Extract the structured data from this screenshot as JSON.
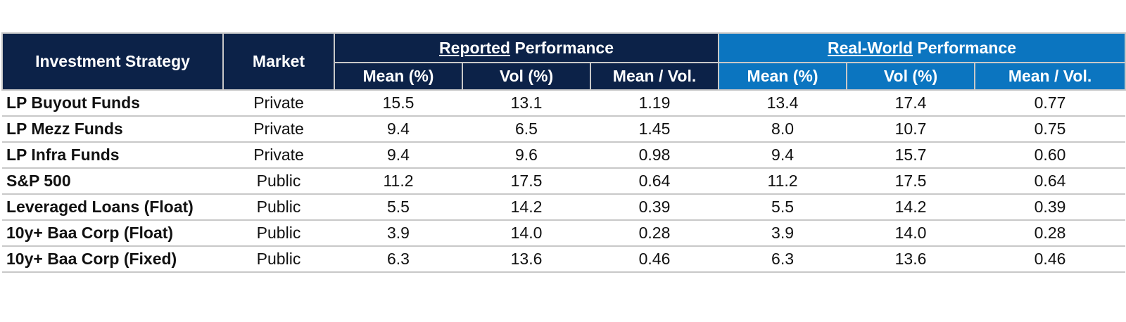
{
  "chart_data": {
    "type": "table",
    "headers": {
      "strategy": "Investment Strategy",
      "market": "Market",
      "reported_group_em": "Reported",
      "reported_group_rest": " Performance",
      "realworld_group_em": "Real-World",
      "realworld_group_rest": " Performance",
      "sub": [
        "Mean (%)",
        "Vol (%)",
        "Mean / Vol.",
        "Mean (%)",
        "Vol (%)",
        "Mean / Vol."
      ]
    },
    "rows": [
      {
        "strategy": "LP Buyout Funds",
        "market": "Private",
        "values": [
          "15.5",
          "13.1",
          "1.19",
          "13.4",
          "17.4",
          "0.77"
        ]
      },
      {
        "strategy": "LP Mezz Funds",
        "market": "Private",
        "values": [
          "9.4",
          "6.5",
          "1.45",
          "8.0",
          "10.7",
          "0.75"
        ]
      },
      {
        "strategy": "LP Infra Funds",
        "market": "Private",
        "values": [
          "9.4",
          "9.6",
          "0.98",
          "9.4",
          "15.7",
          "0.60"
        ]
      },
      {
        "strategy": "S&P 500",
        "market": "Public",
        "values": [
          "11.2",
          "17.5",
          "0.64",
          "11.2",
          "17.5",
          "0.64"
        ]
      },
      {
        "strategy": "Leveraged Loans (Float)",
        "market": "Public",
        "values": [
          "5.5",
          "14.2",
          "0.39",
          "5.5",
          "14.2",
          "0.39"
        ]
      },
      {
        "strategy": "10y+ Baa Corp (Float)",
        "market": "Public",
        "values": [
          "3.9",
          "14.0",
          "0.28",
          "3.9",
          "14.0",
          "0.28"
        ]
      },
      {
        "strategy": "10y+ Baa Corp (Fixed)",
        "market": "Public",
        "values": [
          "6.3",
          "13.6",
          "0.46",
          "6.3",
          "13.6",
          "0.46"
        ]
      }
    ]
  },
  "colors": {
    "reported_header": "#0c2248",
    "realworld_header": "#0b75c0",
    "rule": "#c8c8c8"
  }
}
